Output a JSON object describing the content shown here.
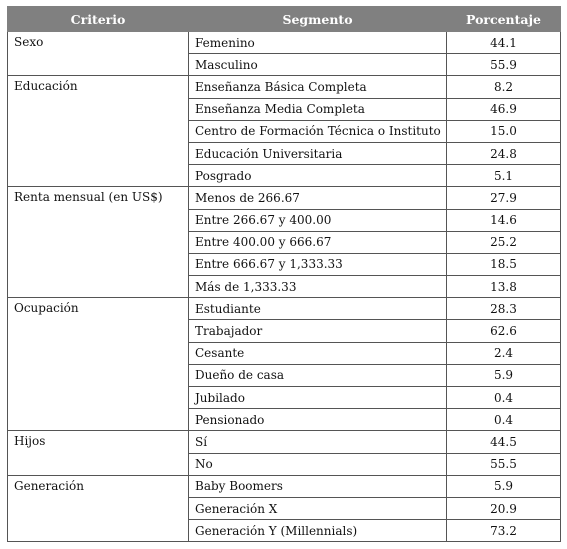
{
  "headers": {
    "criterio": "Criterio",
    "segmento": "Segmento",
    "porcentaje": "Porcentaje"
  },
  "groups": [
    {
      "criterio": "Sexo",
      "rows": [
        {
          "segmento": "Femenino",
          "porcentaje": "44.1"
        },
        {
          "segmento": "Masculino",
          "porcentaje": "55.9"
        }
      ]
    },
    {
      "criterio": "Educación",
      "rows": [
        {
          "segmento": "Enseñanza Básica Completa",
          "porcentaje": "8.2"
        },
        {
          "segmento": "Enseñanza Media Completa",
          "porcentaje": "46.9"
        },
        {
          "segmento": "Centro de Formación Técnica o Instituto",
          "porcentaje": "15.0"
        },
        {
          "segmento": "Educación Universitaria",
          "porcentaje": "24.8"
        },
        {
          "segmento": "Posgrado",
          "porcentaje": "5.1"
        }
      ]
    },
    {
      "criterio": "Renta mensual (en US$)",
      "rows": [
        {
          "segmento": "Menos de 266.67",
          "porcentaje": "27.9"
        },
        {
          "segmento": "Entre 266.67 y 400.00",
          "porcentaje": "14.6"
        },
        {
          "segmento": "Entre 400.00 y 666.67",
          "porcentaje": "25.2"
        },
        {
          "segmento": "Entre 666.67 y 1,333.33",
          "porcentaje": "18.5"
        },
        {
          "segmento": "Más de 1,333.33",
          "porcentaje": "13.8"
        }
      ]
    },
    {
      "criterio": "Ocupación",
      "rows": [
        {
          "segmento": "Estudiante",
          "porcentaje": "28.3"
        },
        {
          "segmento": "Trabajador",
          "porcentaje": "62.6"
        },
        {
          "segmento": "Cesante",
          "porcentaje": "2.4"
        },
        {
          "segmento": "Dueño de casa",
          "porcentaje": "5.9"
        },
        {
          "segmento": "Jubilado",
          "porcentaje": "0.4"
        },
        {
          "segmento": "Pensionado",
          "porcentaje": "0.4"
        }
      ]
    },
    {
      "criterio": "Hijos",
      "rows": [
        {
          "segmento": "Sí",
          "porcentaje": "44.5"
        },
        {
          "segmento": "No",
          "porcentaje": "55.5"
        }
      ]
    },
    {
      "criterio": "Generación",
      "rows": [
        {
          "segmento": "Baby Boomers",
          "porcentaje": "5.9"
        },
        {
          "segmento": "Generación X",
          "porcentaje": "20.9"
        },
        {
          "segmento": "Generación Y (Millennials)",
          "porcentaje": "73.2"
        }
      ]
    }
  ]
}
